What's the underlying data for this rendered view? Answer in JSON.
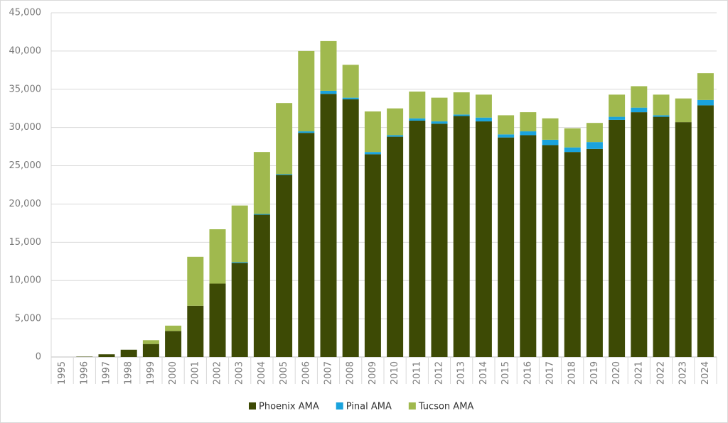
{
  "chart_data": {
    "type": "stacked_bar",
    "categories": [
      "1995",
      "1996",
      "1997",
      "1998",
      "1999",
      "2000",
      "2001",
      "2002",
      "2003",
      "2004",
      "2005",
      "2006",
      "2007",
      "2008",
      "2009",
      "2010",
      "2011",
      "2012",
      "2013",
      "2014",
      "2015",
      "2016",
      "2017",
      "2018",
      "2019",
      "2020",
      "2021",
      "2022",
      "2023",
      "2024"
    ],
    "series": [
      {
        "name": "Phoenix AMA",
        "color": "#3d4a05",
        "values": [
          0,
          50,
          350,
          950,
          1700,
          3400,
          6700,
          9600,
          12300,
          18600,
          23800,
          29300,
          34400,
          33700,
          26500,
          28800,
          30900,
          30500,
          31500,
          30800,
          28700,
          29000,
          27700,
          26800,
          27200,
          31000,
          32000,
          31400,
          30700,
          32900
        ]
      },
      {
        "name": "Pinal AMA",
        "color": "#1aa3dd",
        "values": [
          0,
          0,
          0,
          0,
          0,
          0,
          0,
          0,
          100,
          100,
          100,
          200,
          400,
          200,
          300,
          200,
          300,
          300,
          200,
          500,
          400,
          500,
          700,
          600,
          900,
          400,
          600,
          200,
          0,
          700
        ]
      },
      {
        "name": "Tucson AMA",
        "color": "#a0b94e",
        "values": [
          0,
          0,
          0,
          0,
          500,
          700,
          6400,
          7100,
          7400,
          8100,
          9300,
          10500,
          6500,
          4300,
          5300,
          3500,
          3500,
          3100,
          2900,
          3000,
          2500,
          2500,
          2800,
          2500,
          2500,
          2900,
          2800,
          2700,
          3100,
          3500
        ]
      }
    ],
    "ylim": [
      0,
      45000
    ],
    "yticks": [
      0,
      {
        "value": 5000,
        "label": "5,000"
      },
      {
        "value": 10000,
        "label": "10,000"
      },
      {
        "value": 15000,
        "label": "15,000"
      },
      {
        "value": 20000,
        "label": "20,000"
      },
      {
        "value": 25000,
        "label": "25,000"
      },
      {
        "value": 30000,
        "label": "30,000"
      },
      {
        "value": 35000,
        "label": "35,000"
      },
      {
        "value": 40000,
        "label": "40,000"
      },
      {
        "value": 45000,
        "label": "45,000"
      }
    ],
    "grid": true,
    "legend": "bottom"
  }
}
